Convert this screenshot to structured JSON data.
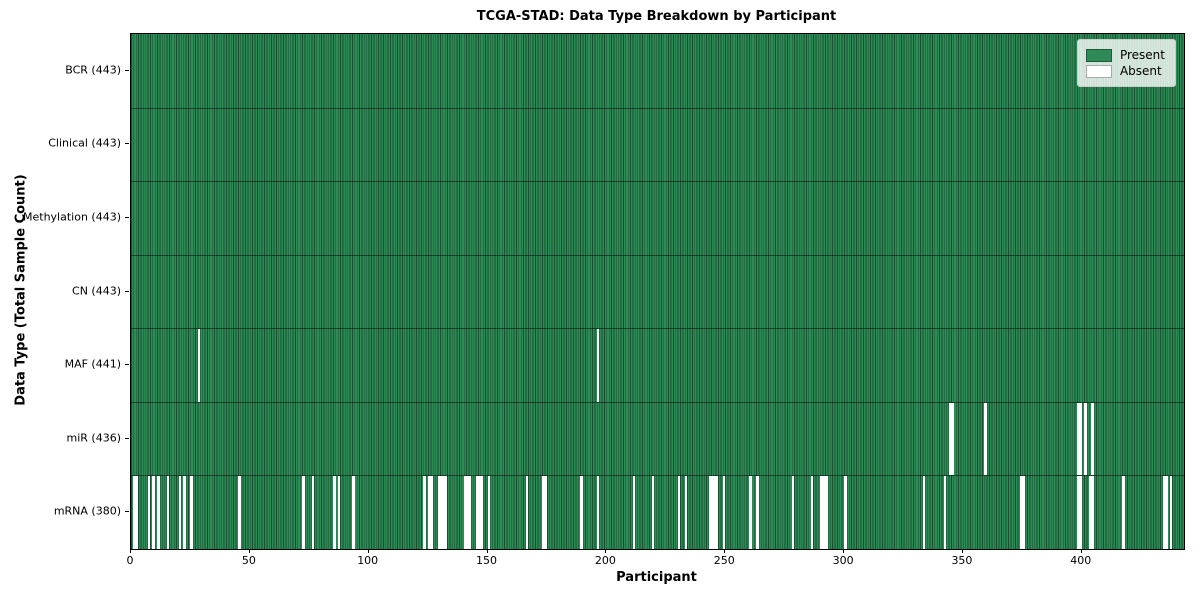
{
  "chart_data": {
    "type": "heatmap",
    "title": "TCGA-STAD: Data Type Breakdown by Participant",
    "xlabel": "Participant",
    "ylabel": "Data Type (Total Sample Count)",
    "x_ticks": [
      0,
      50,
      100,
      150,
      200,
      250,
      300,
      350,
      400
    ],
    "xlim": [
      0,
      443
    ],
    "n_participants": 443,
    "grid": false,
    "legend": {
      "position": "upper-right",
      "entries": [
        {
          "label": "Present",
          "color": "#2e8b57",
          "edge": "#1d5c3a"
        },
        {
          "label": "Absent",
          "color": "#ffffff",
          "edge": "#aaaaaa"
        }
      ]
    },
    "colors": {
      "present_fill": "#2e8b57",
      "present_edge": "#16502f",
      "absent_fill": "#ffffff",
      "row_divider": "rgba(0,0,0,0.5)",
      "frame": "#000000"
    },
    "rows": [
      {
        "data_type": "BCR",
        "label": "BCR (443)",
        "present_count": 443,
        "absent_participants": []
      },
      {
        "data_type": "Clinical",
        "label": "Clinical (443)",
        "present_count": 443,
        "absent_participants": []
      },
      {
        "data_type": "Methylation",
        "label": "Methylation (443)",
        "present_count": 443,
        "absent_participants": []
      },
      {
        "data_type": "CN",
        "label": "CN (443)",
        "present_count": 443,
        "absent_participants": []
      },
      {
        "data_type": "MAF",
        "label": "MAF (441)",
        "present_count": 441,
        "absent_participants": [
          28,
          196
        ]
      },
      {
        "data_type": "miR",
        "label": "miR (436)",
        "present_count": 436,
        "absent_participants": [
          344,
          345,
          359,
          398,
          399,
          401,
          404
        ]
      },
      {
        "data_type": "mRNA",
        "label": "mRNA (380)",
        "present_count": 380,
        "absent_participants": [
          1,
          2,
          7,
          9,
          11,
          15,
          20,
          22,
          25,
          45,
          72,
          76,
          85,
          87,
          93,
          123,
          125,
          126,
          129,
          130,
          131,
          132,
          140,
          141,
          142,
          145,
          146,
          147,
          150,
          166,
          173,
          174,
          189,
          196,
          211,
          219,
          230,
          233,
          243,
          244,
          245,
          246,
          249,
          260,
          263,
          278,
          286,
          290,
          291,
          292,
          300,
          333,
          342,
          374,
          375,
          398,
          399,
          403,
          404,
          417,
          434,
          435,
          437
        ]
      }
    ]
  }
}
